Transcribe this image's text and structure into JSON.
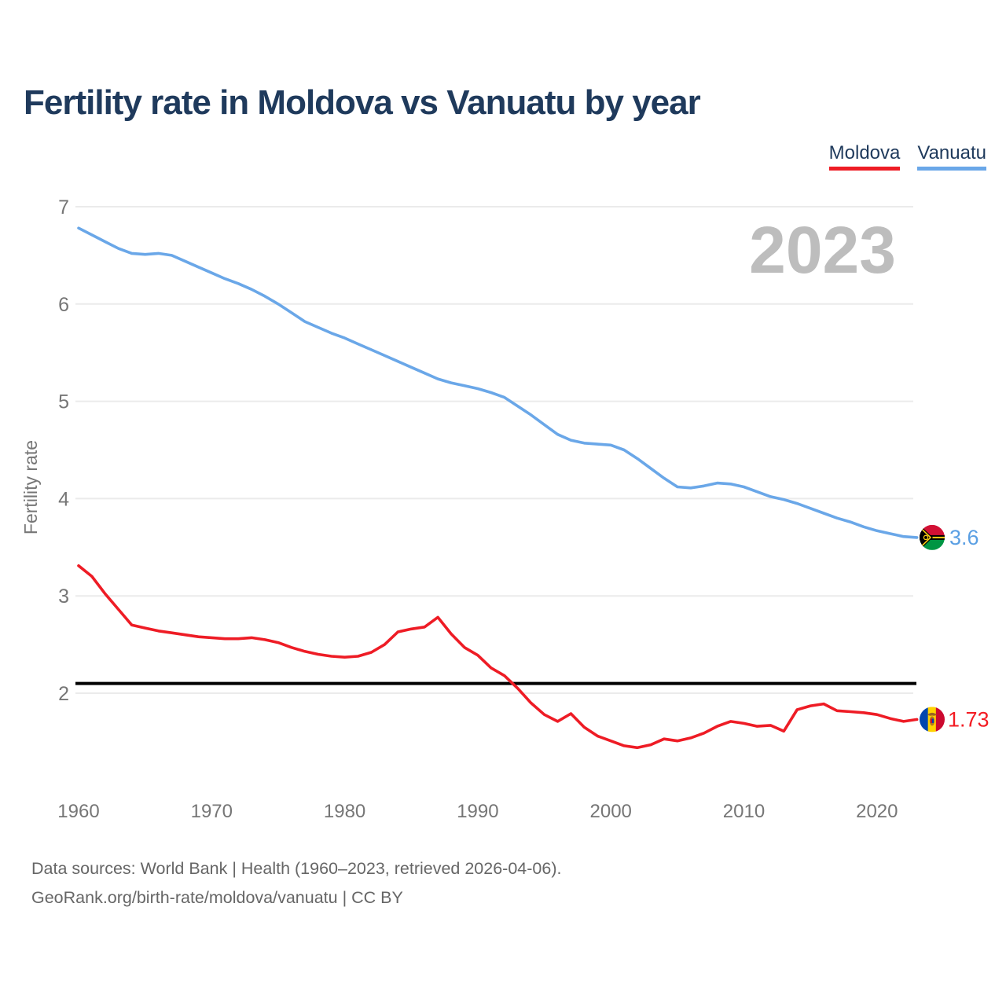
{
  "title": "Fertility rate in Moldova vs Vanuatu by year",
  "watermark_year": "2023",
  "legend": [
    {
      "label": "Moldova",
      "color": "#ee1c25"
    },
    {
      "label": "Vanuatu",
      "color": "#6aa7e8"
    }
  ],
  "y_axis": {
    "title": "Fertility rate",
    "ticks": [
      7,
      6,
      5,
      4,
      3,
      2
    ]
  },
  "x_axis": {
    "ticks": [
      1960,
      1970,
      1980,
      1990,
      2000,
      2010,
      2020
    ]
  },
  "reference_line": {
    "value": 2.1,
    "color": "#000000"
  },
  "end_labels": [
    {
      "series": "Vanuatu",
      "value": "3.6",
      "color": "#5a9fe3",
      "flag": "vanuatu-flag"
    },
    {
      "series": "Moldova",
      "value": "1.73",
      "color": "#f31b22",
      "flag": "moldova-flag"
    }
  ],
  "footer": {
    "line1": "Data sources: World Bank | Health (1960–2023, retrieved 2026-04-06).",
    "line2": "GeoRank.org/birth-rate/moldova/vanuatu | CC BY"
  },
  "colors": {
    "title_text": "#1f3a5c",
    "axis_text": "#767676",
    "gridline": "#ebebeb",
    "watermark": "#bdbdbd",
    "moldova_line": "#ee1c25",
    "vanuatu_line": "#6aa7e8",
    "footer_text": "#666666"
  },
  "chart_data": {
    "type": "line",
    "title": "Fertility rate in Moldova vs Vanuatu by year",
    "xlabel": "",
    "ylabel": "Fertility rate",
    "ylim": [
      2,
      7
    ],
    "xlim": [
      1960,
      2023
    ],
    "grid": "horizontal",
    "legend_position": "top-right",
    "annotation": "2023",
    "reference_line_y": 2.1,
    "x": [
      1960,
      1961,
      1962,
      1963,
      1964,
      1965,
      1966,
      1967,
      1968,
      1969,
      1970,
      1971,
      1972,
      1973,
      1974,
      1975,
      1976,
      1977,
      1978,
      1979,
      1980,
      1981,
      1982,
      1983,
      1984,
      1985,
      1986,
      1987,
      1988,
      1989,
      1990,
      1991,
      1992,
      1993,
      1994,
      1995,
      1996,
      1997,
      1998,
      1999,
      2000,
      2001,
      2002,
      2003,
      2004,
      2005,
      2006,
      2007,
      2008,
      2009,
      2010,
      2011,
      2012,
      2013,
      2014,
      2015,
      2016,
      2017,
      2018,
      2019,
      2020,
      2021,
      2022,
      2023
    ],
    "series": [
      {
        "name": "Moldova",
        "color": "#ee1c25",
        "final_value": 1.73,
        "values": [
          3.31,
          3.2,
          3.02,
          2.86,
          2.7,
          2.67,
          2.64,
          2.62,
          2.6,
          2.58,
          2.57,
          2.56,
          2.56,
          2.57,
          2.55,
          2.52,
          2.47,
          2.43,
          2.4,
          2.38,
          2.37,
          2.38,
          2.42,
          2.5,
          2.63,
          2.66,
          2.68,
          2.78,
          2.61,
          2.47,
          2.39,
          2.26,
          2.18,
          2.05,
          1.9,
          1.78,
          1.71,
          1.79,
          1.65,
          1.56,
          1.51,
          1.46,
          1.44,
          1.47,
          1.53,
          1.51,
          1.54,
          1.59,
          1.66,
          1.71,
          1.69,
          1.66,
          1.67,
          1.61,
          1.83,
          1.87,
          1.89,
          1.82,
          1.81,
          1.8,
          1.78,
          1.74,
          1.71,
          1.73
        ]
      },
      {
        "name": "Vanuatu",
        "color": "#6aa7e8",
        "final_value": 3.6,
        "values": [
          6.78,
          6.71,
          6.64,
          6.57,
          6.52,
          6.51,
          6.52,
          6.5,
          6.44,
          6.38,
          6.32,
          6.26,
          6.21,
          6.15,
          6.08,
          6.0,
          5.91,
          5.82,
          5.76,
          5.7,
          5.65,
          5.59,
          5.53,
          5.47,
          5.41,
          5.35,
          5.29,
          5.23,
          5.19,
          5.16,
          5.13,
          5.09,
          5.04,
          4.95,
          4.86,
          4.76,
          4.66,
          4.6,
          4.57,
          4.56,
          4.55,
          4.5,
          4.41,
          4.31,
          4.21,
          4.12,
          4.11,
          4.13,
          4.16,
          4.15,
          4.12,
          4.07,
          4.02,
          3.99,
          3.95,
          3.9,
          3.85,
          3.8,
          3.76,
          3.71,
          3.67,
          3.64,
          3.61,
          3.6
        ]
      }
    ]
  }
}
